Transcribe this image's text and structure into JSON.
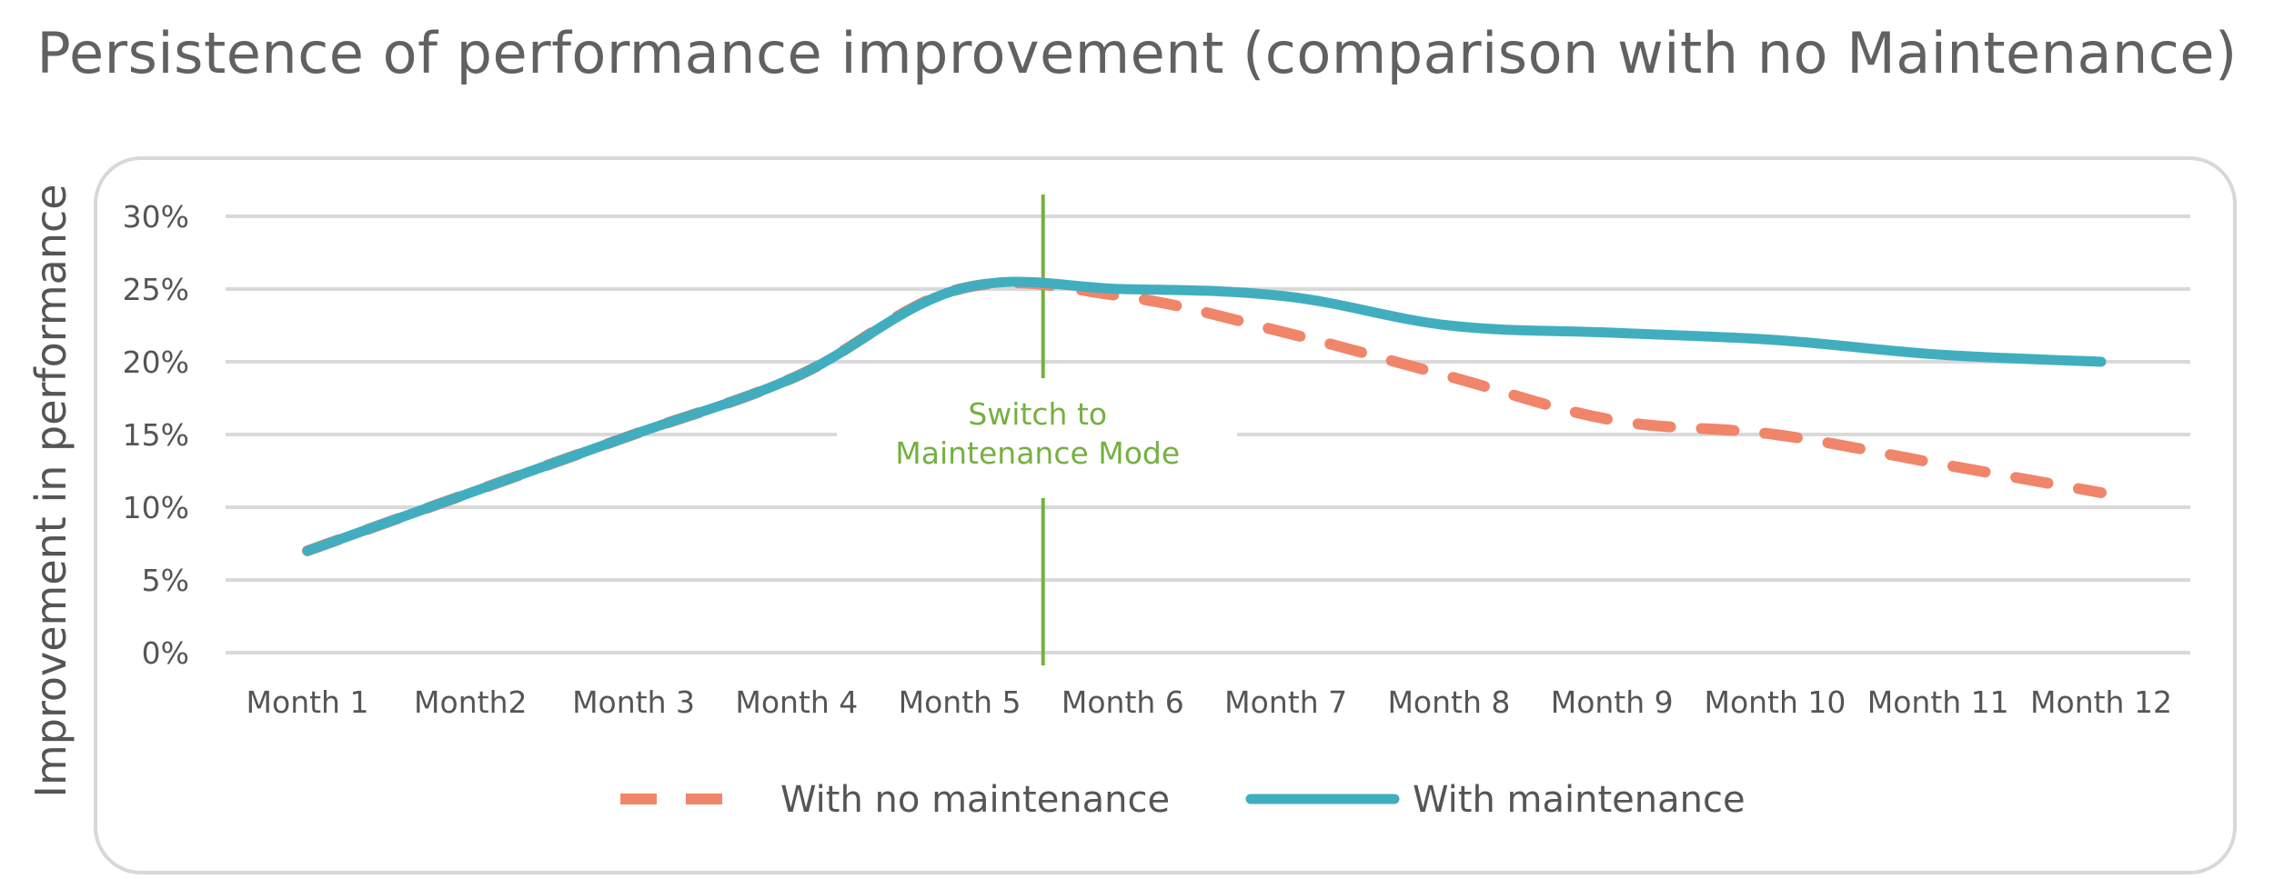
{
  "chart_data": {
    "type": "line",
    "title": "Persistence of performance improvement (comparison with no Maintenance)",
    "ylabel": "Improvement in performance",
    "xlabel": "",
    "categories": [
      "Month 1",
      "Month2",
      "Month 3",
      "Month 4",
      "Month 5",
      "Month 6",
      "Month 7",
      "Month 8",
      "Month 9",
      "Month 10",
      "Month 11",
      "Month 12"
    ],
    "ylim": [
      0,
      30
    ],
    "yticks": [
      0,
      5,
      10,
      15,
      20,
      25,
      30
    ],
    "ytick_labels": [
      "0%",
      "5%",
      "10%",
      "15%",
      "20%",
      "25%",
      "30%"
    ],
    "grid": true,
    "legend_placement": "bottom",
    "series": [
      {
        "name": "With no maintenance",
        "values": [
          7,
          11,
          15,
          19,
          25,
          24.5,
          22,
          19,
          16,
          15,
          13,
          11
        ],
        "color": "#f0856a",
        "style": "dashed"
      },
      {
        "name": "With maintenance",
        "values": [
          7,
          11,
          15,
          19,
          25,
          25,
          24.5,
          22.5,
          22,
          21.5,
          20.5,
          20
        ],
        "color": "#41aebf",
        "style": "solid"
      }
    ],
    "annotation": {
      "lines": [
        "Switch to",
        "Maintenance Mode"
      ],
      "position_between": [
        "Month 5",
        "Month 6"
      ],
      "color": "#76b041"
    }
  }
}
